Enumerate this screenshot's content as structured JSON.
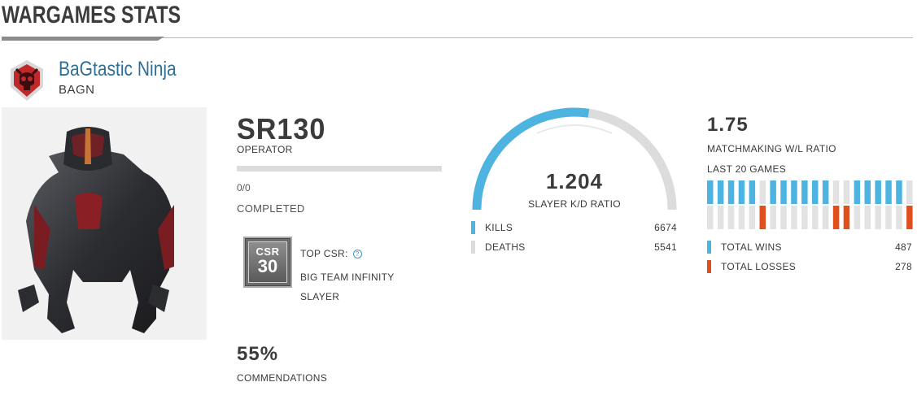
{
  "header": {
    "title": "WARGAMES STATS"
  },
  "player": {
    "gamertag": "BaGtastic Ninja",
    "clan_tag": "BAGN",
    "emblem_icon": "skull-emblem-icon"
  },
  "spartan_rank": {
    "rank": "SR130",
    "rank_name": "OPERATOR",
    "progress": 0,
    "progress_text": "0/0",
    "progress_label": "COMPLETED"
  },
  "csr": {
    "badge_label": "CSR",
    "badge_value": "30",
    "top_label": "TOP CSR:",
    "help_icon": "question-circle-icon",
    "playlist": "BIG TEAM INFINITY SLAYER"
  },
  "commendations": {
    "percent": "55%",
    "label": "COMMENDATIONS"
  },
  "kd": {
    "value": "1.204",
    "label": "SLAYER K/D RATIO",
    "kills_fraction": 0.5464,
    "kills_label": "KILLS",
    "kills_value": "6674",
    "deaths_label": "DEATHS",
    "deaths_value": "5541",
    "kills_color": "#4db3e0",
    "deaths_color": "#dcdcdc"
  },
  "matchmaking": {
    "ratio": "1.75",
    "ratio_label": "MATCHMAKING W/L RATIO",
    "last20_label": "LAST 20 GAMES",
    "last20": [
      "W",
      "W",
      "W",
      "W",
      "W",
      "L",
      "W",
      "W",
      "W",
      "W",
      "W",
      "W",
      "L",
      "L",
      "W",
      "W",
      "W",
      "W",
      "W",
      "L"
    ],
    "wins_label": "TOTAL WINS",
    "wins_value": "487",
    "losses_label": "TOTAL LOSSES",
    "losses_value": "278",
    "win_color": "#4db3e0",
    "loss_color": "#e0501c",
    "empty_color": "#e2e2e2"
  }
}
